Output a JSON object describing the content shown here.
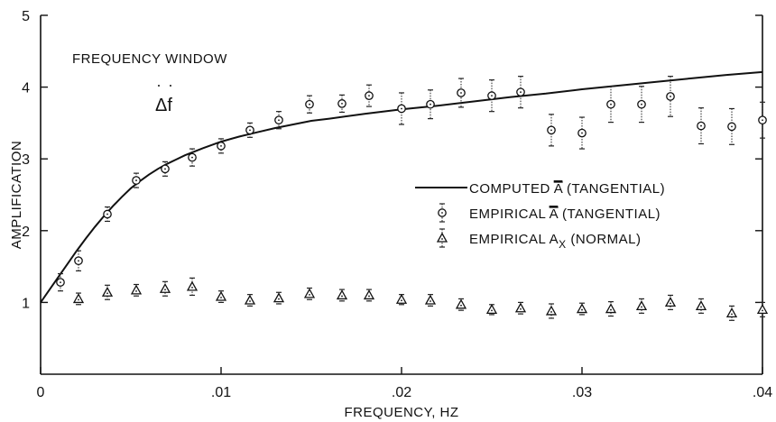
{
  "chart_data": {
    "type": "scatter",
    "xlabel": "FREQUENCY, HZ",
    "ylabel": "AMPLIFICATION",
    "xlim": [
      0,
      0.04
    ],
    "ylim": [
      0,
      5
    ],
    "x_ticks": [
      0,
      0.01,
      0.02,
      0.03,
      0.04
    ],
    "x_tick_labels": [
      "0",
      ".01",
      ".02",
      ".03",
      ".04"
    ],
    "y_ticks": [
      1,
      2,
      3,
      4,
      5
    ],
    "y_tick_labels": [
      "1",
      "2",
      "3",
      "4",
      "5"
    ],
    "grid": false,
    "legend_position": "center-right",
    "annotation": {
      "title": "FREQUENCY WINDOW",
      "symbol": "Δf"
    },
    "series": [
      {
        "name": "COMPUTED Ā (TANGENTIAL)",
        "legend_text": "COMPUTED",
        "legend_symbol": "A",
        "legend_suffix": "(TANGENTIAL)",
        "marker": "line",
        "x": [
          0,
          0.0005,
          0.001,
          0.0015,
          0.002,
          0.0025,
          0.003,
          0.0035,
          0.004,
          0.0045,
          0.005,
          0.0055,
          0.006,
          0.0065,
          0.007,
          0.0075,
          0.008,
          0.009,
          0.01,
          0.011,
          0.012,
          0.013,
          0.014,
          0.015,
          0.016,
          0.018,
          0.02,
          0.022,
          0.024,
          0.026,
          0.028,
          0.03,
          0.032,
          0.034,
          0.036,
          0.038,
          0.04
        ],
        "y": [
          1.0,
          1.18,
          1.36,
          1.54,
          1.72,
          1.89,
          2.05,
          2.2,
          2.34,
          2.47,
          2.59,
          2.69,
          2.78,
          2.86,
          2.93,
          2.99,
          3.05,
          3.15,
          3.24,
          3.31,
          3.37,
          3.43,
          3.48,
          3.53,
          3.56,
          3.63,
          3.69,
          3.74,
          3.8,
          3.86,
          3.91,
          3.97,
          4.02,
          4.07,
          4.12,
          4.17,
          4.21
        ]
      },
      {
        "name": "EMPIRICAL Ā (TANGENTIAL)",
        "legend_text": "EMPIRICAL",
        "legend_symbol": "A",
        "legend_suffix": "(TANGENTIAL)",
        "marker": "circle",
        "x": [
          0.0011,
          0.0021,
          0.0037,
          0.0053,
          0.0069,
          0.0084,
          0.01,
          0.0116,
          0.0132,
          0.0149,
          0.0167,
          0.0182,
          0.02,
          0.0216,
          0.0233,
          0.025,
          0.0266,
          0.0283,
          0.03,
          0.0316,
          0.0333,
          0.0349,
          0.0366,
          0.0383,
          0.04
        ],
        "y": [
          1.28,
          1.58,
          2.23,
          2.7,
          2.86,
          3.02,
          3.18,
          3.4,
          3.54,
          3.76,
          3.77,
          3.88,
          3.7,
          3.76,
          3.92,
          3.88,
          3.93,
          3.4,
          3.36,
          3.76,
          3.76,
          3.87,
          3.46,
          3.45,
          3.54
        ],
        "err": [
          0.12,
          0.14,
          0.1,
          0.1,
          0.1,
          0.12,
          0.1,
          0.1,
          0.12,
          0.12,
          0.12,
          0.15,
          0.22,
          0.2,
          0.2,
          0.22,
          0.22,
          0.22,
          0.22,
          0.25,
          0.25,
          0.28,
          0.25,
          0.25,
          0.25
        ]
      },
      {
        "name": "EMPIRICAL Aₓ (NORMAL)",
        "legend_text": "EMPIRICAL",
        "legend_symbol": "A",
        "legend_subscript": "X",
        "legend_suffix": "(NORMAL)",
        "marker": "triangle",
        "x": [
          0.0021,
          0.0037,
          0.0053,
          0.0069,
          0.0084,
          0.01,
          0.0116,
          0.0132,
          0.0149,
          0.0167,
          0.0182,
          0.02,
          0.0216,
          0.0233,
          0.025,
          0.0266,
          0.0283,
          0.03,
          0.0316,
          0.0333,
          0.0349,
          0.0366,
          0.0383,
          0.04
        ],
        "y": [
          1.05,
          1.14,
          1.17,
          1.19,
          1.22,
          1.08,
          1.03,
          1.06,
          1.12,
          1.1,
          1.1,
          1.04,
          1.03,
          0.97,
          0.9,
          0.92,
          0.88,
          0.91,
          0.91,
          0.95,
          1.0,
          0.95,
          0.85,
          0.9
        ],
        "err": [
          0.08,
          0.1,
          0.08,
          0.1,
          0.12,
          0.08,
          0.08,
          0.08,
          0.08,
          0.08,
          0.08,
          0.07,
          0.08,
          0.08,
          0.07,
          0.08,
          0.1,
          0.08,
          0.1,
          0.1,
          0.1,
          0.1,
          0.1,
          0.1
        ]
      }
    ]
  }
}
